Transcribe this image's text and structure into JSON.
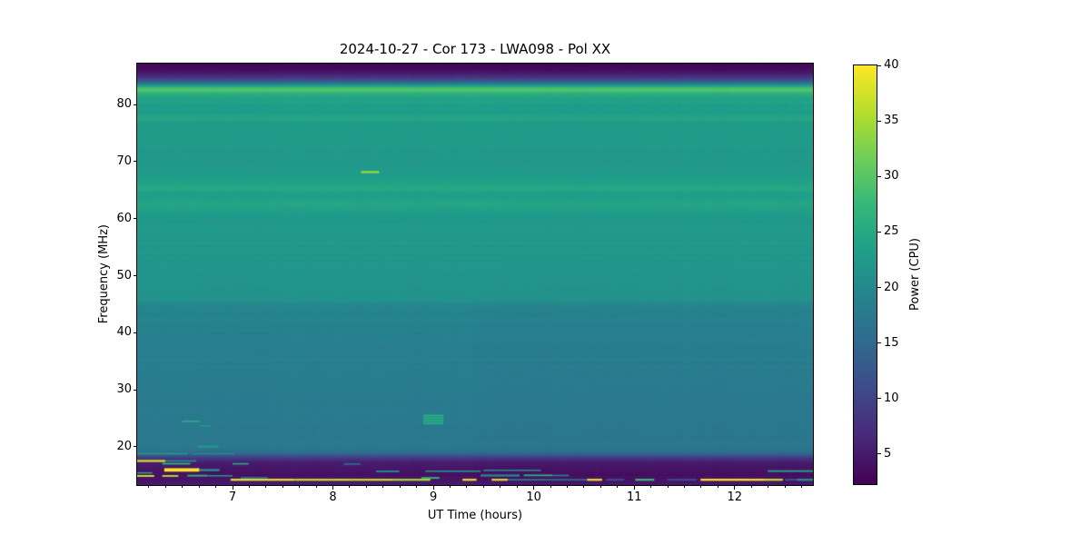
{
  "chart_data": {
    "type": "heatmap",
    "colormap": "viridis",
    "title": "2024-10-27 - Cor 173 - LWA098 - Pol XX",
    "xlabel": "UT Time (hours)",
    "ylabel": "Frequency (MHz)",
    "x_unit": "UT hours",
    "y_unit": "MHz",
    "value_unit": "Power (CPU)",
    "x_range": [
      6.05,
      12.78
    ],
    "y_range": [
      13.3,
      87.2
    ],
    "x_ticks": [
      7,
      8,
      9,
      10,
      11,
      12
    ],
    "x_minor_interval": 0.1666667,
    "y_ticks": [
      20,
      30,
      40,
      50,
      60,
      70,
      80
    ],
    "colorbar": {
      "label": "Power (CPU)",
      "ticks": [
        5,
        10,
        15,
        20,
        25,
        30,
        35,
        40
      ],
      "vmin": 2.3,
      "vmax": 40
    },
    "viridis_stops": [
      "#440154",
      "#482878",
      "#3e4989",
      "#31688e",
      "#26828e",
      "#1f9e89",
      "#35b779",
      "#6ece58",
      "#b5de2b",
      "#fde725"
    ],
    "background_profile": [
      [
        87.2,
        2.8
      ],
      [
        86.4,
        3.2
      ],
      [
        85.6,
        4.5
      ],
      [
        84.8,
        8
      ],
      [
        84.0,
        14
      ],
      [
        83.4,
        22
      ],
      [
        82.9,
        29
      ],
      [
        82.5,
        30
      ],
      [
        82.0,
        26.5
      ],
      [
        81.4,
        24.8
      ],
      [
        80.6,
        23.6
      ],
      [
        79.6,
        23.2
      ],
      [
        78.6,
        22.8
      ],
      [
        77.6,
        24.2
      ],
      [
        76.8,
        23.0
      ],
      [
        75.8,
        23.2
      ],
      [
        74.6,
        22.6
      ],
      [
        73.4,
        22.9
      ],
      [
        72.2,
        22.4
      ],
      [
        71.0,
        22.8
      ],
      [
        69.8,
        22.3
      ],
      [
        68.6,
        22.8
      ],
      [
        67.4,
        23.2
      ],
      [
        66.2,
        23.8
      ],
      [
        65.2,
        24.6
      ],
      [
        64.4,
        23.4
      ],
      [
        63.4,
        23.6
      ],
      [
        62.6,
        24.6
      ],
      [
        61.8,
        23.8
      ],
      [
        60.8,
        23.0
      ],
      [
        59.6,
        22.4
      ],
      [
        58.4,
        22.8
      ],
      [
        57.2,
        22.2
      ],
      [
        56.0,
        22.5
      ],
      [
        54.8,
        21.9
      ],
      [
        53.6,
        22.3
      ],
      [
        52.4,
        21.8
      ],
      [
        51.2,
        22.0
      ],
      [
        50.0,
        21.6
      ],
      [
        48.8,
        21.9
      ],
      [
        47.6,
        21.4
      ],
      [
        46.4,
        21.6
      ],
      [
        45.6,
        21.3
      ],
      [
        45.2,
        20.2
      ],
      [
        44.6,
        19.6
      ],
      [
        43.4,
        19.3
      ],
      [
        42.0,
        19.1
      ],
      [
        40.0,
        18.9
      ],
      [
        38.0,
        18.7
      ],
      [
        36.0,
        18.5
      ],
      [
        34.0,
        18.3
      ],
      [
        32.0,
        18.1
      ],
      [
        30.0,
        17.9
      ],
      [
        28.0,
        17.8
      ],
      [
        26.5,
        17.7
      ],
      [
        25.0,
        17.8
      ],
      [
        23.5,
        17.6
      ],
      [
        22.0,
        17.5
      ],
      [
        21.0,
        17.7
      ],
      [
        20.2,
        17.4
      ],
      [
        19.6,
        17.0
      ],
      [
        19.2,
        16.2
      ],
      [
        18.8,
        14.5
      ],
      [
        18.4,
        11.5
      ],
      [
        18.0,
        8.5
      ],
      [
        17.6,
        6.5
      ],
      [
        17.2,
        5.2
      ],
      [
        16.6,
        4.6
      ],
      [
        16.0,
        4.3
      ],
      [
        15.2,
        4.1
      ],
      [
        14.4,
        4.3
      ],
      [
        13.8,
        4.6
      ],
      [
        13.3,
        5.2
      ]
    ],
    "time_shading": [
      {
        "t": [
          9.41,
          10.19
        ],
        "below_freq": 46,
        "dp": -0.3
      },
      {
        "t": [
          10.19,
          10.56
        ],
        "below_freq": 46,
        "dp": -0.15
      },
      {
        "t": [
          10.56,
          12.78
        ],
        "below_freq": 46,
        "dp": -0.25
      }
    ],
    "features": [
      {
        "t": [
          8.28,
          8.46
        ],
        "f": [
          68.0,
          68.35
        ],
        "p": 35
      },
      {
        "t": [
          8.9,
          9.1
        ],
        "f": [
          23.9,
          25.7
        ],
        "p": 22
      },
      {
        "t": [
          8.9,
          9.1
        ],
        "f": [
          25.35,
          25.6
        ],
        "p": 26
      },
      {
        "t": [
          8.9,
          9.1
        ],
        "f": [
          24.9,
          25.15
        ],
        "p": 26
      },
      {
        "t": [
          8.9,
          9.1
        ],
        "f": [
          24.45,
          24.7
        ],
        "p": 26
      },
      {
        "t": [
          8.9,
          9.1
        ],
        "f": [
          24.0,
          24.25
        ],
        "p": 26
      },
      {
        "t": [
          6.5,
          6.67
        ],
        "f": [
          24.35,
          24.6
        ],
        "p": 26
      },
      {
        "t": [
          6.67,
          6.78
        ],
        "f": [
          23.55,
          23.8
        ],
        "p": 23
      },
      {
        "t": [
          6.65,
          6.86
        ],
        "f": [
          19.9,
          20.18
        ],
        "p": 24
      },
      {
        "t": [
          6.05,
          6.55
        ],
        "f": [
          18.65,
          18.95
        ],
        "p": 22.5
      },
      {
        "t": [
          6.6,
          7.02
        ],
        "f": [
          18.7,
          18.9
        ],
        "p": 20.5
      },
      {
        "t": [
          6.05,
          6.33
        ],
        "f": [
          17.35,
          17.7
        ],
        "p": 38
      },
      {
        "t": [
          6.33,
          6.64
        ],
        "f": [
          17.4,
          17.65
        ],
        "p": 22
      },
      {
        "t": [
          6.3,
          6.58
        ],
        "f": [
          16.9,
          17.2
        ],
        "p": 27
      },
      {
        "t": [
          7.0,
          7.16
        ],
        "f": [
          16.9,
          17.15
        ],
        "p": 26
      },
      {
        "t": [
          8.11,
          8.27
        ],
        "f": [
          16.9,
          17.1
        ],
        "p": 18
      },
      {
        "t": [
          6.32,
          6.67
        ],
        "f": [
          15.65,
          16.25
        ],
        "p": 40
      },
      {
        "t": [
          6.67,
          6.87
        ],
        "f": [
          15.75,
          16.1
        ],
        "p": 23
      },
      {
        "t": [
          6.05,
          6.2
        ],
        "f": [
          15.3,
          15.55
        ],
        "p": 25
      },
      {
        "t": [
          6.05,
          6.22
        ],
        "f": [
          14.75,
          15.05
        ],
        "p": 38
      },
      {
        "t": [
          6.3,
          6.46
        ],
        "f": [
          14.75,
          15.05
        ],
        "p": 36
      },
      {
        "t": [
          6.55,
          6.75
        ],
        "f": [
          14.8,
          15.1
        ],
        "p": 27
      },
      {
        "t": [
          6.75,
          7.0
        ],
        "f": [
          14.8,
          15.05
        ],
        "p": 22
      },
      {
        "t": [
          7.08,
          7.35
        ],
        "f": [
          14.45,
          14.7
        ],
        "p": 20
      },
      {
        "t": [
          8.43,
          8.66
        ],
        "f": [
          15.55,
          15.85
        ],
        "p": 21
      },
      {
        "t": [
          8.92,
          9.47
        ],
        "f": [
          15.6,
          15.85
        ],
        "p": 22
      },
      {
        "t": [
          9.5,
          10.07
        ],
        "f": [
          15.75,
          16.0
        ],
        "p": 21
      },
      {
        "t": [
          12.33,
          12.78
        ],
        "f": [
          15.6,
          15.9
        ],
        "p": 24
      },
      {
        "t": [
          9.47,
          9.86
        ],
        "f": [
          14.8,
          15.15
        ],
        "p": 21
      },
      {
        "t": [
          9.9,
          10.19
        ],
        "f": [
          14.85,
          15.15
        ],
        "p": 26
      },
      {
        "t": [
          10.19,
          10.35
        ],
        "f": [
          14.85,
          15.1
        ],
        "p": 20
      },
      {
        "t": [
          8.88,
          9.06
        ],
        "f": [
          14.4,
          14.7
        ],
        "p": 27
      },
      {
        "t": [
          6.98,
          7.62
        ],
        "f": [
          14.05,
          14.4
        ],
        "p": 39
      },
      {
        "t": [
          7.62,
          8.6
        ],
        "f": [
          14.05,
          14.4
        ],
        "p": 37
      },
      {
        "t": [
          8.6,
          8.97
        ],
        "f": [
          14.05,
          14.4
        ],
        "p": 35
      },
      {
        "t": [
          9.29,
          9.43
        ],
        "f": [
          14.05,
          14.4
        ],
        "p": 39
      },
      {
        "t": [
          9.58,
          9.74
        ],
        "f": [
          14.05,
          14.4
        ],
        "p": 38
      },
      {
        "t": [
          9.74,
          10.12
        ],
        "f": [
          14.1,
          14.35
        ],
        "p": 20
      },
      {
        "t": [
          10.12,
          10.53
        ],
        "f": [
          14.1,
          14.35
        ],
        "p": 18
      },
      {
        "t": [
          10.53,
          10.68
        ],
        "f": [
          14.05,
          14.4
        ],
        "p": 39
      },
      {
        "t": [
          10.72,
          10.9
        ],
        "f": [
          14.1,
          14.35
        ],
        "p": 14
      },
      {
        "t": [
          11.01,
          11.2
        ],
        "f": [
          14.05,
          14.4
        ],
        "p": 28
      },
      {
        "t": [
          11.33,
          11.62
        ],
        "f": [
          14.1,
          14.35
        ],
        "p": 14
      },
      {
        "t": [
          11.66,
          12.3
        ],
        "f": [
          14.05,
          14.4
        ],
        "p": 40
      },
      {
        "t": [
          12.3,
          12.48
        ],
        "f": [
          14.05,
          14.4
        ],
        "p": 37
      },
      {
        "t": [
          12.5,
          12.62
        ],
        "f": [
          14.1,
          14.35
        ],
        "p": 14
      },
      {
        "t": [
          12.62,
          12.78
        ],
        "f": [
          14.05,
          14.4
        ],
        "p": 22
      }
    ]
  }
}
